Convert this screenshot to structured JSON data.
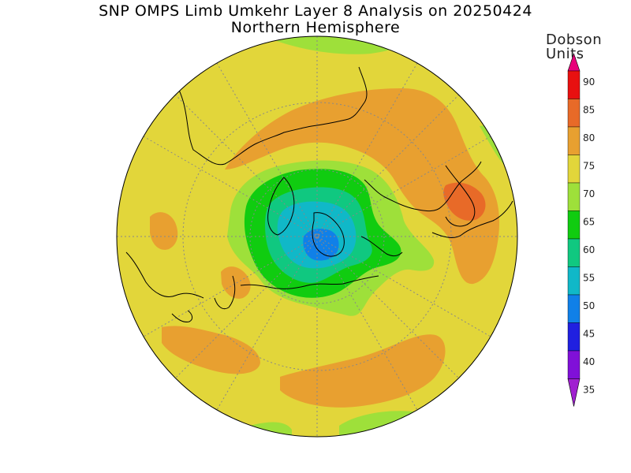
{
  "title": "SNP OMPS Limb Umkehr Layer 8 Analysis on 20250424",
  "subtitle": "Northern Hemisphere",
  "colorbar": {
    "title_line1": "Dobson",
    "title_line2": "Units",
    "levels": [
      {
        "value": "90",
        "color": "#e8007a"
      },
      {
        "value": "85",
        "color": "#e81010"
      },
      {
        "value": "80",
        "color": "#e86a28"
      },
      {
        "value": "75",
        "color": "#e8a030"
      },
      {
        "value": "70",
        "color": "#e2d63a"
      },
      {
        "value": "65",
        "color": "#9ee03a"
      },
      {
        "value": "60",
        "color": "#10cc10"
      },
      {
        "value": "55",
        "color": "#10c880"
      },
      {
        "value": "50",
        "color": "#10b8c8"
      },
      {
        "value": "45",
        "color": "#1080e8"
      },
      {
        "value": "40",
        "color": "#2020e0"
      },
      {
        "value": "35",
        "color": "#8010d8"
      }
    ],
    "bottom_color": "#a020d0"
  },
  "field_colors": {
    "base": "#e2d63a",
    "light_green": "#9ee03a",
    "green": "#10cc10",
    "teal": "#10c880",
    "cyan": "#10b8c8",
    "blue": "#1080e8",
    "orange": "#e8a030",
    "dark_orange": "#e86a28"
  }
}
